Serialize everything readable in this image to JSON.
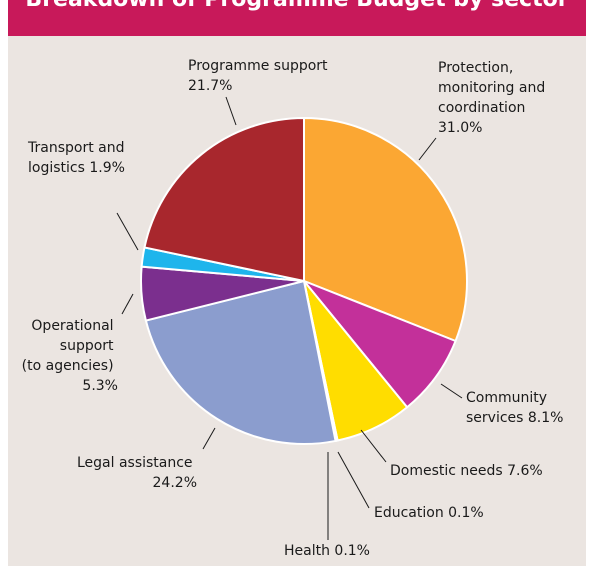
{
  "header": {
    "title": "Breakdown of Programme Budget by sector"
  },
  "chart_data": {
    "type": "pie",
    "title": "Breakdown of Programme Budget by sector",
    "slices": [
      {
        "label": "Protection, monitoring and coordination 31.0%",
        "value": 31.0,
        "color": "#fba733"
      },
      {
        "label": "Community services 8.1%",
        "value": 8.1,
        "color": "#c3309a"
      },
      {
        "label": "Domestic needs 7.6%",
        "value": 7.6,
        "color": "#ffdd00"
      },
      {
        "label": "Education 0.1%",
        "value": 0.1,
        "color": "#f2e48a"
      },
      {
        "label": "Health 0.1%",
        "value": 0.1,
        "color": "#d6e6f2"
      },
      {
        "label": "Legal assistance 24.2%",
        "value": 24.2,
        "color": "#8b9dce"
      },
      {
        "label": "Operational support (to agencies) 5.3%",
        "value": 5.3,
        "color": "#7b2f8e"
      },
      {
        "label": "Transport and logistics 1.9%",
        "value": 1.9,
        "color": "#1eb5ec"
      },
      {
        "label": "Programme support 21.7%",
        "value": 21.7,
        "color": "#a8272d"
      }
    ],
    "legend": "none"
  }
}
